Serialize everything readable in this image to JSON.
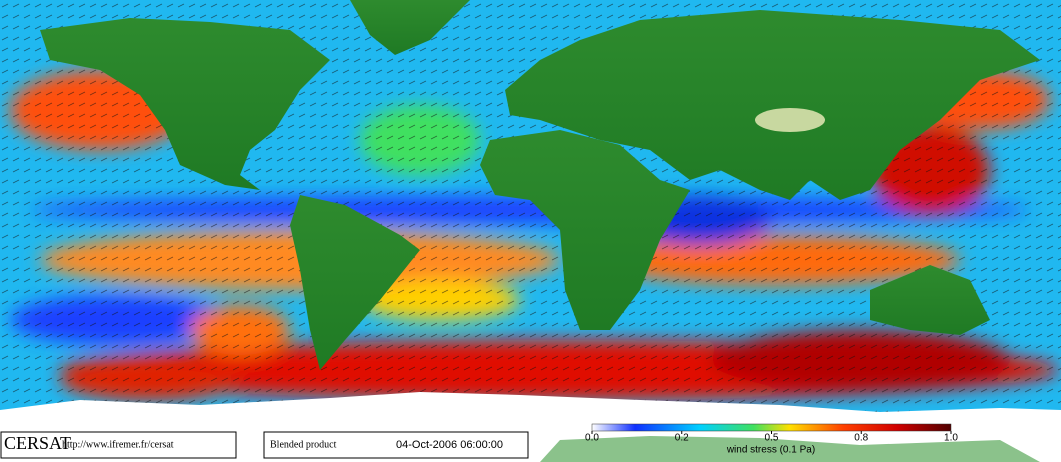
{
  "footer": {
    "logo": "CERSAT",
    "url": "http://www.ifremer.fr/cersat",
    "product": "Blended product",
    "datetime": "04-Oct-2006 06:00:00"
  },
  "colorbar": {
    "ticks": [
      {
        "value": 0,
        "label": "0.0"
      },
      0.2,
      0.5,
      0.8,
      {
        "value": 1,
        "label": "1.0"
      }
    ],
    "label": "wind stress (0.1 Pa)"
  }
}
